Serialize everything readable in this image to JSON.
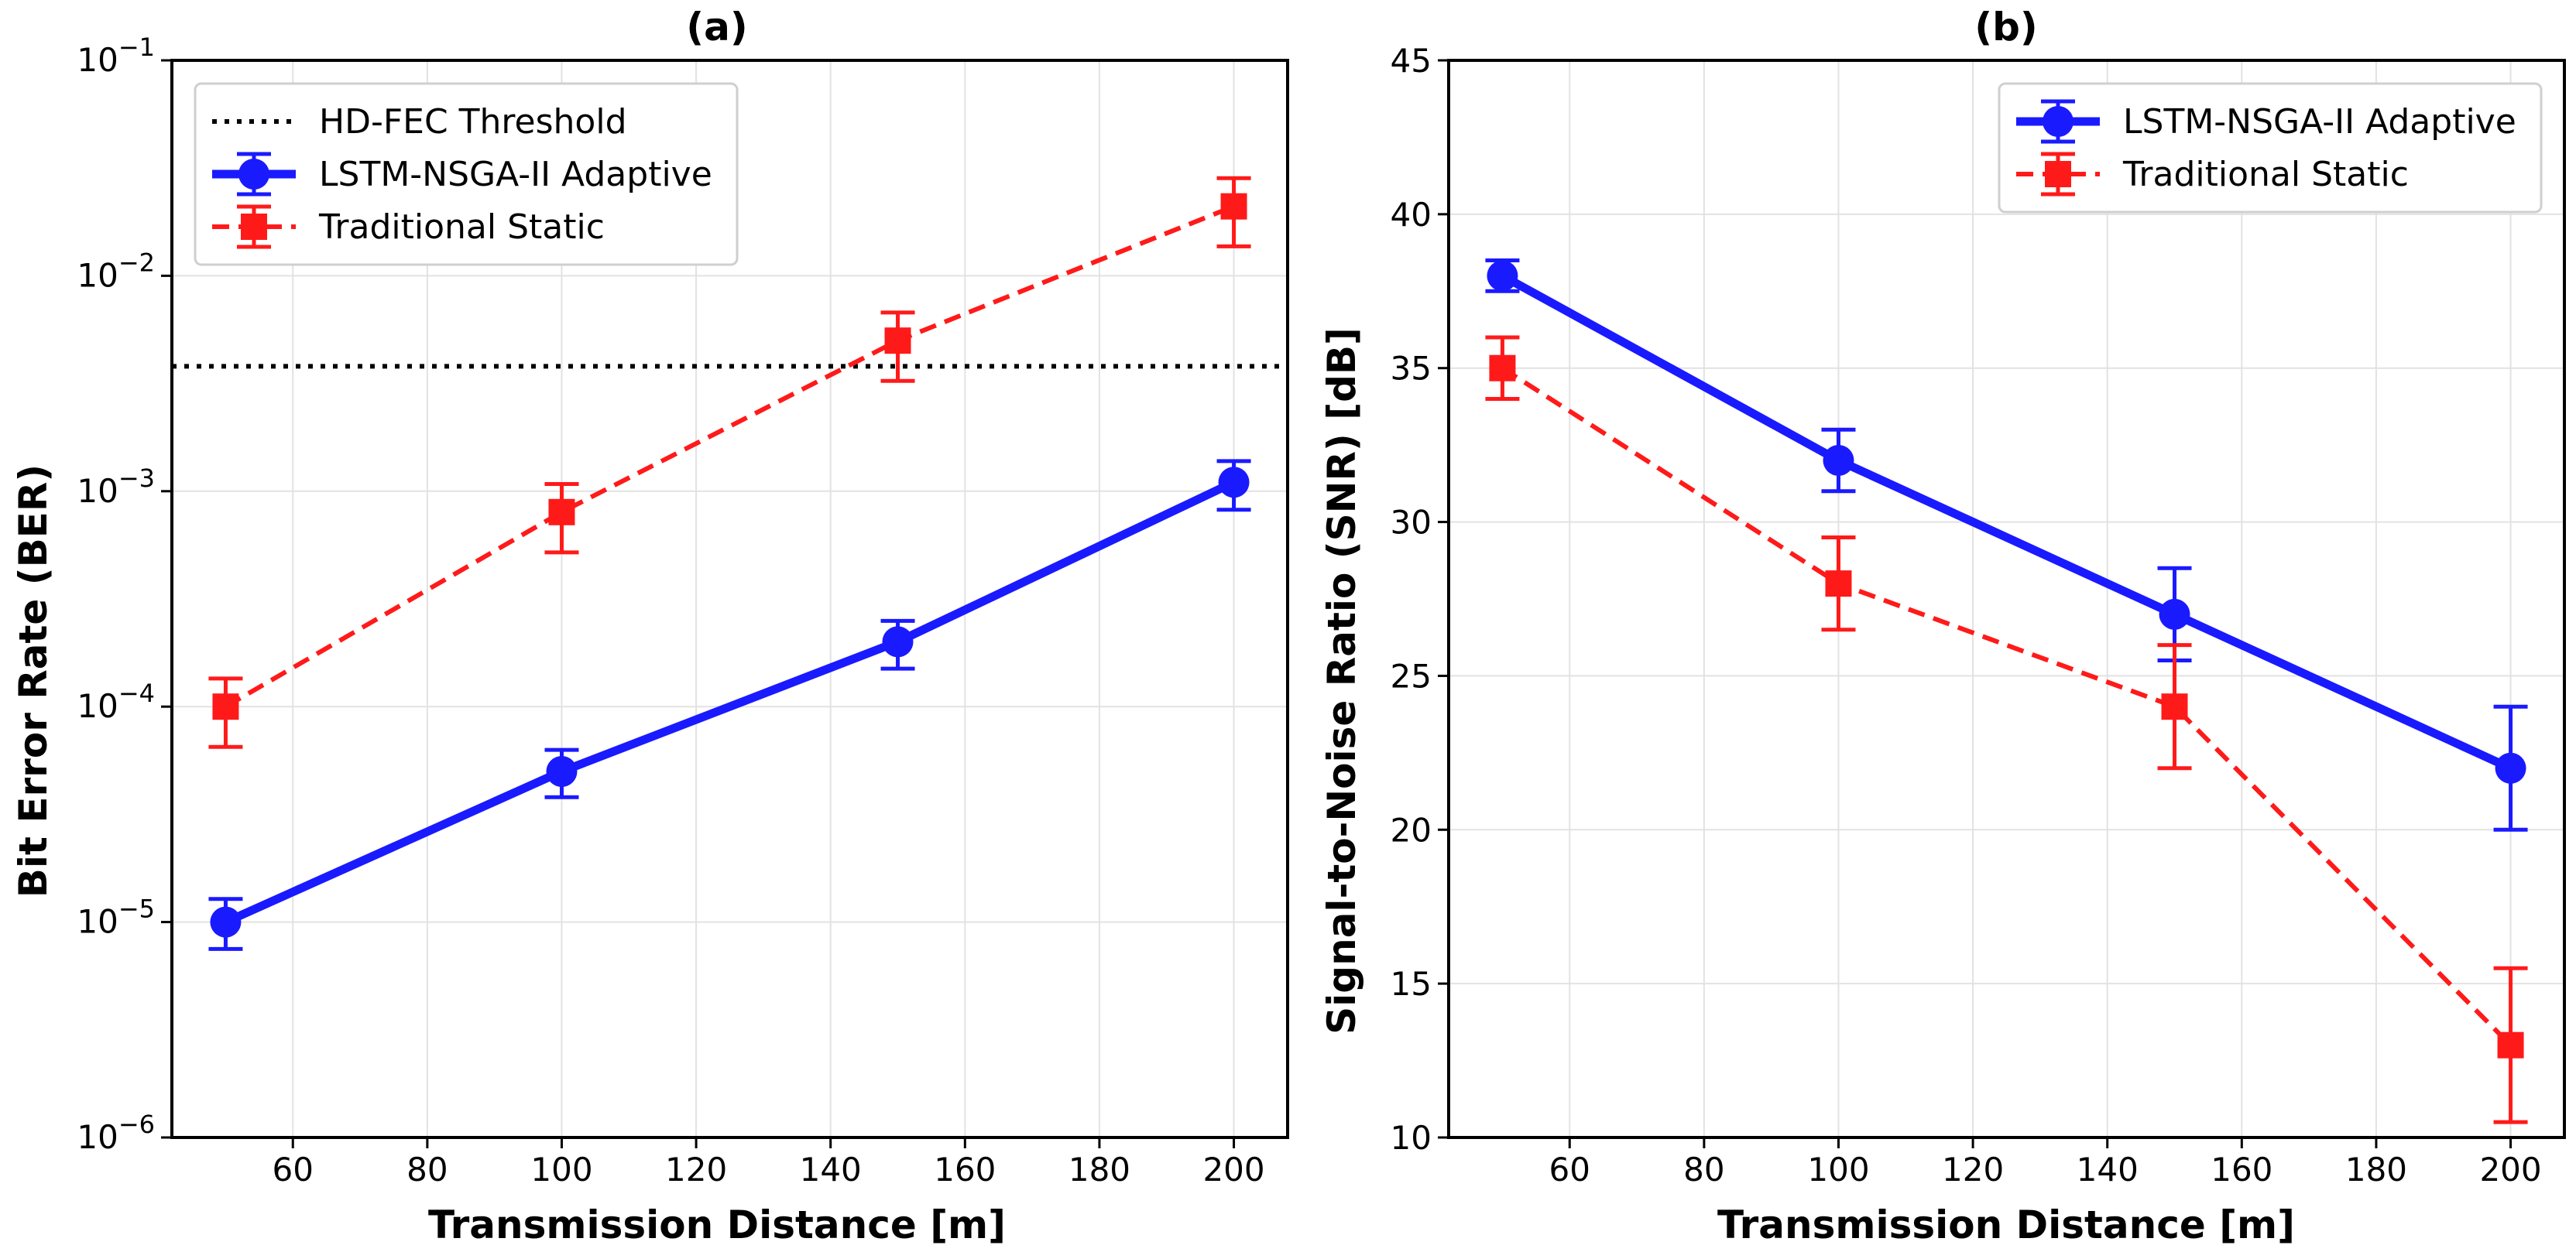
{
  "chart_data": [
    {
      "type": "line",
      "title": "(a)",
      "xlabel": "Transmission Distance [m]",
      "ylabel": "Bit Error Rate (BER)",
      "yscale": "log",
      "xlim": [
        42,
        208
      ],
      "ylim": [
        1e-06,
        0.1
      ],
      "xticks": [
        60,
        80,
        100,
        120,
        140,
        160,
        180,
        200
      ],
      "yticks": [
        {
          "value": 1e-06,
          "base": "10",
          "exp": "−6"
        },
        {
          "value": 1e-05,
          "base": "10",
          "exp": "−5"
        },
        {
          "value": 0.0001,
          "base": "10",
          "exp": "−4"
        },
        {
          "value": 0.001,
          "base": "10",
          "exp": "−3"
        },
        {
          "value": 0.01,
          "base": "10",
          "exp": "−2"
        },
        {
          "value": 0.1,
          "base": "10",
          "exp": "−1"
        }
      ],
      "grid": true,
      "legend_position": "top-left",
      "threshold": {
        "name": "HD-FEC Threshold",
        "value": 0.0038,
        "color": "#000000"
      },
      "series": [
        {
          "name": "LSTM-NSGA-II Adaptive",
          "color": "#1a1aff",
          "marker": "circle",
          "dashed": false,
          "x": [
            50,
            100,
            150,
            200
          ],
          "y": [
            1e-05,
            5e-05,
            0.0002,
            0.0011
          ],
          "err_low": [
            7.5e-06,
            3.8e-05,
            0.00015,
            0.00082
          ],
          "err_high": [
            1.28e-05,
            6.3e-05,
            0.00025,
            0.00138
          ]
        },
        {
          "name": "Traditional Static",
          "color": "#ff1a1a",
          "marker": "square",
          "dashed": true,
          "x": [
            50,
            100,
            150,
            200
          ],
          "y": [
            0.0001,
            0.0008,
            0.005,
            0.021
          ],
          "err_low": [
            6.5e-05,
            0.00052,
            0.00325,
            0.0137
          ],
          "err_high": [
            0.000135,
            0.00108,
            0.00675,
            0.0284
          ]
        }
      ]
    },
    {
      "type": "line",
      "title": "(b)",
      "xlabel": "Transmission Distance [m]",
      "ylabel": "Signal-to-Noise Ratio (SNR) [dB]",
      "yscale": "linear",
      "xlim": [
        42,
        208
      ],
      "ylim": [
        10,
        45
      ],
      "xticks": [
        60,
        80,
        100,
        120,
        140,
        160,
        180,
        200
      ],
      "yticks": [
        10,
        15,
        20,
        25,
        30,
        35,
        40,
        45
      ],
      "grid": true,
      "legend_position": "top-right",
      "series": [
        {
          "name": "LSTM-NSGA-II Adaptive",
          "color": "#1a1aff",
          "marker": "circle",
          "dashed": false,
          "x": [
            50,
            100,
            150,
            200
          ],
          "y": [
            38,
            32,
            27,
            22
          ],
          "err": [
            0.5,
            1.0,
            1.5,
            2.0
          ]
        },
        {
          "name": "Traditional Static",
          "color": "#ff1a1a",
          "marker": "square",
          "dashed": true,
          "x": [
            50,
            100,
            150,
            200
          ],
          "y": [
            35,
            28,
            24,
            13
          ],
          "err": [
            1.0,
            1.5,
            2.0,
            2.5
          ]
        }
      ]
    }
  ]
}
